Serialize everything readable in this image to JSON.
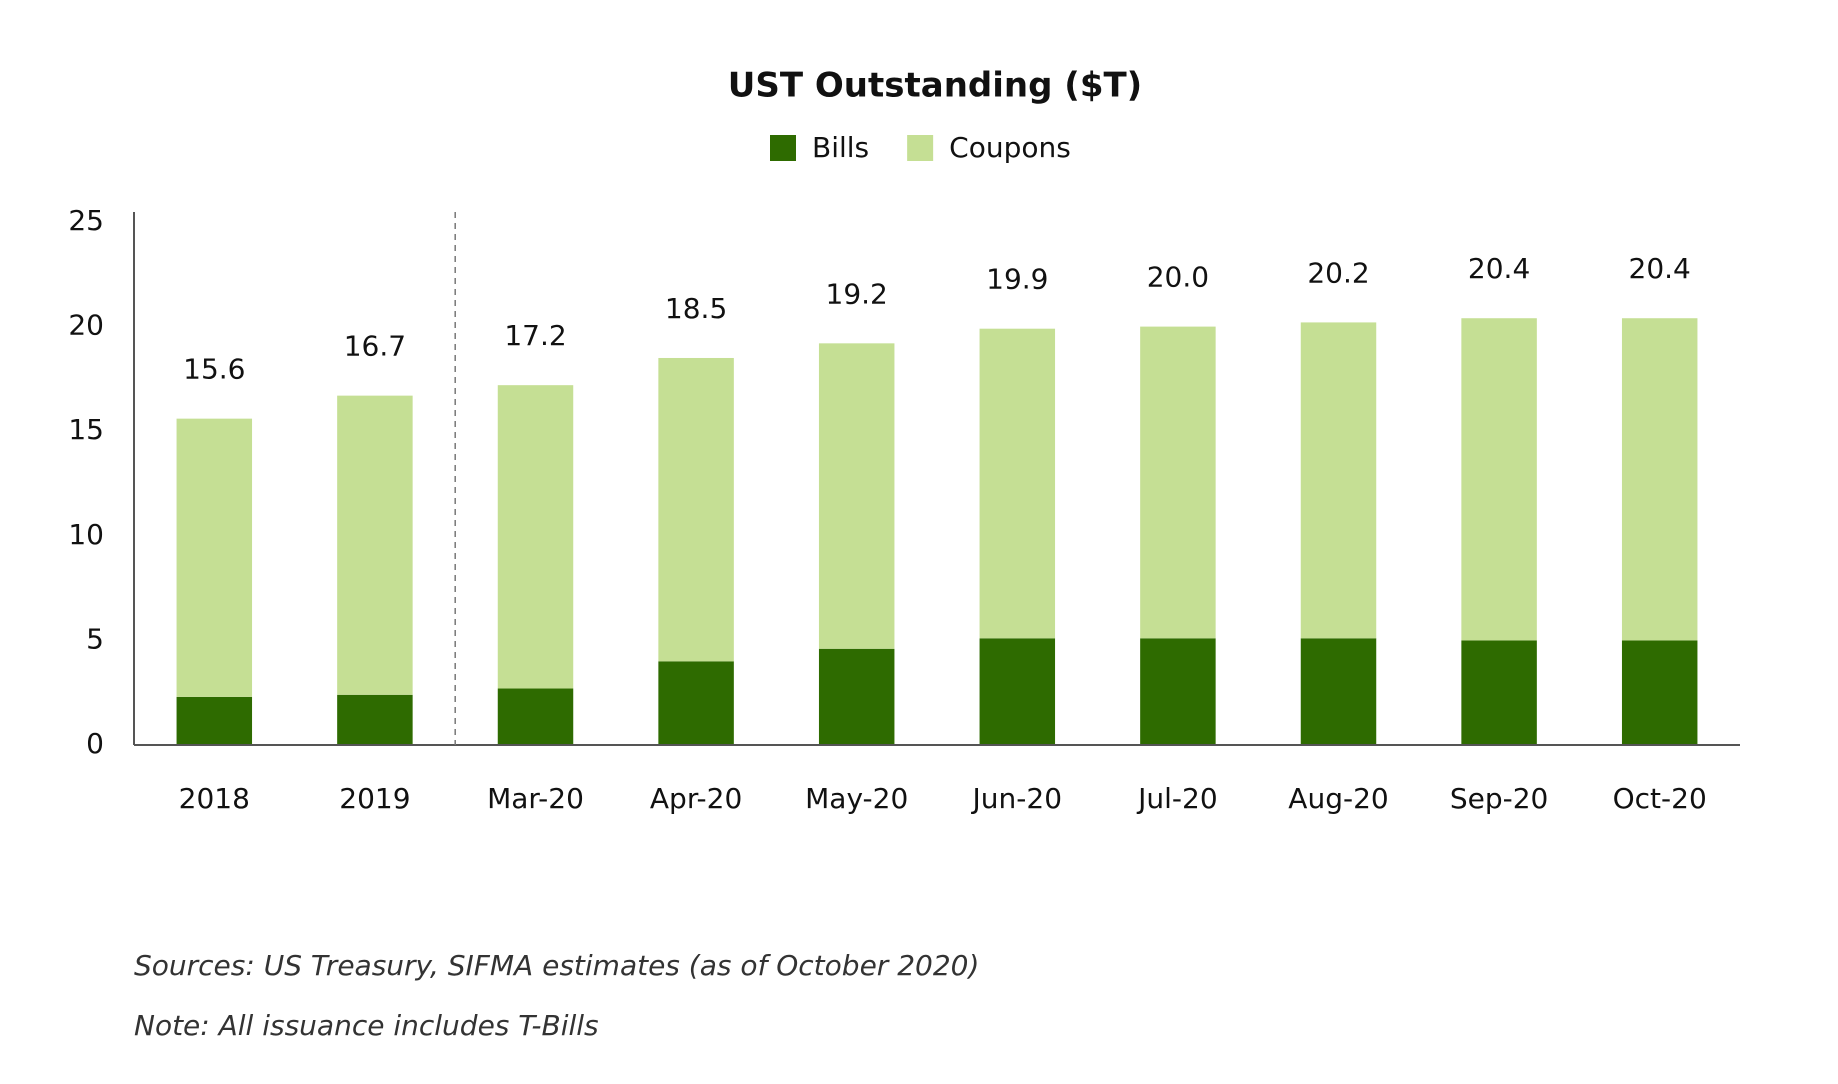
{
  "chart_data": {
    "type": "stacked_bar",
    "title": "UST Outstanding ($T)",
    "categories": [
      "2018",
      "2019",
      "Mar-20",
      "Apr-20",
      "May-20",
      "Jun-20",
      "Jul-20",
      "Aug-20",
      "Sep-20",
      "Oct-20"
    ],
    "series": [
      {
        "name": "Bills",
        "color": "#2e6b00",
        "values": [
          2.3,
          2.4,
          2.7,
          4.0,
          4.6,
          5.1,
          5.1,
          5.1,
          5.0,
          5.0
        ]
      },
      {
        "name": "Coupons",
        "color": "#c5df94",
        "values": [
          13.3,
          14.3,
          14.5,
          14.5,
          14.6,
          14.8,
          14.9,
          15.1,
          15.4,
          15.4
        ]
      }
    ],
    "totals": [
      15.6,
      16.7,
      17.2,
      18.5,
      19.2,
      19.9,
      20.0,
      20.2,
      20.4,
      20.4
    ],
    "total_labels": [
      "15.6",
      "16.7",
      "17.2",
      "18.5",
      "19.2",
      "19.9",
      "20.0",
      "20.2",
      "20.4",
      "20.4"
    ],
    "ylim": [
      0,
      25
    ],
    "yticks": [
      0,
      5,
      10,
      15,
      20,
      25
    ],
    "grid": false,
    "legend": "top",
    "notes": [
      "Sources: US Treasury, SIFMA estimates (as of October 2020)",
      "Note: All issuance includes T-Bills"
    ]
  }
}
